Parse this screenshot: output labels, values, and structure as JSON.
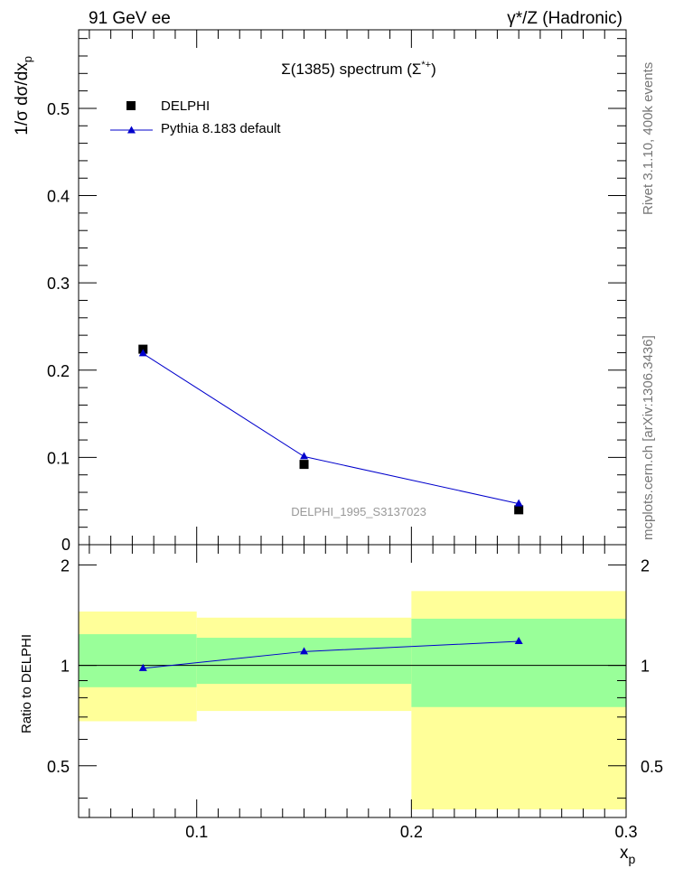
{
  "header": {
    "left": "91 GeV ee",
    "right": "γ*/Z (Hadronic)"
  },
  "side_labels": {
    "rivet": "Rivet 3.1.10, 400k events",
    "mcplots": "mcplots.cern.ch [arXiv:1306.3436]"
  },
  "chart_data": [
    {
      "type": "scatter",
      "title": "Σ(1385) spectrum (Σ*+)",
      "ylabel": "1/σ dσ/dx_p",
      "watermark": "DELPHI_1995_S3137023",
      "xlim": [
        0.045,
        0.3
      ],
      "ylim": [
        0,
        0.59
      ],
      "y_ticks": [
        0.1,
        0.2,
        0.3,
        0.4,
        0.5
      ],
      "y_tick_labels": [
        "0.1",
        "0.2",
        "0.3",
        "0.4",
        "0.5"
      ],
      "y_zero_label": "0",
      "legend_position": "top-left",
      "series": [
        {
          "name": "DELPHI",
          "style": "markers",
          "marker": "square",
          "color": "#000000",
          "x": [
            0.075,
            0.15,
            0.25
          ],
          "y": [
            0.224,
            0.092,
            0.04
          ]
        },
        {
          "name": "Pythia 8.183 default",
          "style": "line+markers",
          "marker": "triangle",
          "color": "#0000cc",
          "x": [
            0.075,
            0.15,
            0.25
          ],
          "y": [
            0.219,
            0.101,
            0.047
          ]
        }
      ]
    },
    {
      "type": "line",
      "ylabel": "Ratio to DELPHI",
      "xlabel": "x_p",
      "xlim": [
        0.045,
        0.3
      ],
      "ylim": [
        0.35,
        2.3
      ],
      "log_y": true,
      "x_ticks": [
        0.1,
        0.2,
        0.3
      ],
      "x_tick_labels": [
        "0.1",
        "0.2",
        "0.3"
      ],
      "y_ticks": [
        0.5,
        1,
        2
      ],
      "y_tick_labels": [
        "0.5",
        "1",
        "2"
      ],
      "uncertainty_bands": [
        {
          "x0": 0.045,
          "x1": 0.1,
          "inner": [
            0.86,
            1.24
          ],
          "outer": [
            0.68,
            1.45
          ]
        },
        {
          "x0": 0.1,
          "x1": 0.2,
          "inner": [
            0.88,
            1.21
          ],
          "outer": [
            0.73,
            1.39
          ]
        },
        {
          "x0": 0.2,
          "x1": 0.3,
          "inner": [
            0.75,
            1.38
          ],
          "outer": [
            0.37,
            1.67
          ]
        }
      ],
      "band_colors": {
        "inner": "#99ff99",
        "outer": "#ffff99"
      },
      "series": [
        {
          "name": "Pythia 8.183 default",
          "marker": "triangle",
          "color": "#0000cc",
          "x": [
            0.075,
            0.15,
            0.25
          ],
          "y": [
            0.98,
            1.1,
            1.18
          ]
        }
      ]
    }
  ]
}
